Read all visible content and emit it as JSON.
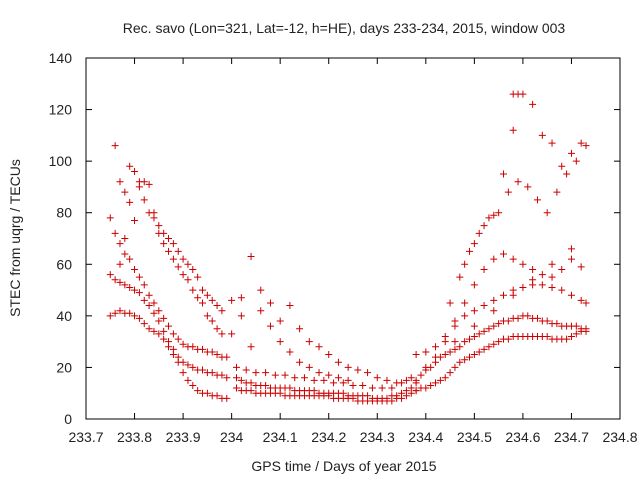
{
  "chart_data": {
    "type": "scatter",
    "title": "Rec. savo (Lon=321, Lat=-12, h=HE), days 233-234, 2015, window 003",
    "xlabel": "GPS time / Days of year 2015",
    "ylabel": "STEC from uqrg / TECUs",
    "xlim": [
      233.7,
      234.8
    ],
    "ylim": [
      0,
      140
    ],
    "xticks": [
      233.7,
      233.8,
      233.9,
      234,
      234.1,
      234.2,
      234.3,
      234.4,
      234.5,
      234.6,
      234.7,
      234.8
    ],
    "xtick_labels": [
      "233.7",
      "233.8",
      "233.9",
      "234",
      "234.1",
      "234.2",
      "234.3",
      "234.4",
      "234.5",
      "234.6",
      "234.7",
      "234.8"
    ],
    "yticks": [
      0,
      20,
      40,
      60,
      80,
      100,
      120,
      140
    ],
    "ytick_labels": [
      "0",
      "20",
      "40",
      "60",
      "80",
      "100",
      "120",
      "140"
    ],
    "grid": false,
    "legend": "none",
    "marker": "plus",
    "color": "#cc0000",
    "series": [
      {
        "x": [
          233.75,
          233.76,
          233.77,
          233.78,
          233.79,
          233.8,
          233.81,
          233.82,
          233.83,
          233.84,
          233.85,
          233.86,
          233.87,
          233.88,
          233.89,
          233.9,
          233.91,
          233.92,
          233.93,
          233.94,
          233.95,
          233.96,
          233.97,
          233.98,
          233.99
        ],
        "y": [
          78,
          72,
          68,
          64,
          62,
          58,
          55,
          52,
          48,
          45,
          42,
          39,
          36,
          33,
          31,
          29,
          28,
          28,
          27,
          27,
          26,
          26,
          25,
          24,
          24
        ]
      },
      {
        "x": [
          233.75,
          233.76,
          233.77,
          233.78,
          233.79,
          233.8,
          233.81,
          233.82,
          233.83,
          233.84,
          233.85,
          233.86,
          233.87,
          233.88,
          233.89,
          233.9,
          233.91,
          233.92,
          233.93,
          233.94,
          233.95,
          233.96,
          233.97,
          233.98,
          233.99
        ],
        "y": [
          56,
          54,
          53,
          52,
          51,
          50,
          49,
          46,
          44,
          41,
          38,
          34,
          30,
          27,
          24,
          22,
          21,
          20,
          19,
          19,
          18,
          18,
          17,
          17,
          16
        ]
      },
      {
        "x": [
          233.75,
          233.76,
          233.77,
          233.78,
          233.79,
          233.8,
          233.81,
          233.82,
          233.83,
          233.84,
          233.85,
          233.86,
          233.87,
          233.88,
          233.89,
          233.9,
          233.91,
          233.92,
          233.93,
          233.94,
          233.95,
          233.96,
          233.97,
          233.98,
          233.99
        ],
        "y": [
          40,
          41,
          42,
          41,
          41,
          40,
          39,
          37,
          35,
          34,
          33,
          31,
          28,
          25,
          22,
          18,
          15,
          13,
          11,
          10,
          10,
          9,
          9,
          8,
          8
        ]
      },
      {
        "x": [
          233.76,
          233.77,
          233.78,
          233.79,
          233.8,
          233.81,
          233.82,
          233.83,
          233.84,
          233.85,
          233.86,
          233.87,
          233.88,
          233.89,
          233.9,
          233.91,
          233.92,
          233.93,
          233.94,
          233.95,
          233.96,
          233.97,
          233.98
        ],
        "y": [
          106,
          92,
          88,
          98,
          96,
          92,
          85,
          80,
          78,
          75,
          72,
          70,
          68,
          65,
          62,
          60,
          58,
          55,
          50,
          48,
          46,
          44,
          42
        ]
      },
      {
        "x": [
          233.77,
          233.78,
          233.79,
          233.8,
          233.81,
          233.82,
          233.83,
          233.84,
          233.85,
          233.86,
          233.87,
          233.88,
          233.89,
          233.9,
          233.91,
          233.92,
          233.93,
          233.94,
          233.95,
          233.96,
          233.97,
          233.98
        ],
        "y": [
          60,
          70,
          84,
          77,
          90,
          92,
          91,
          80,
          72,
          68,
          65,
          62,
          59,
          56,
          54,
          50,
          47,
          45,
          40,
          38,
          35,
          33
        ]
      },
      {
        "x": [
          234.01,
          234.02,
          234.03,
          234.04,
          234.05,
          234.06,
          234.07,
          234.08,
          234.09,
          234.1,
          234.11,
          234.12,
          234.13,
          234.14,
          234.15,
          234.16,
          234.17,
          234.18,
          234.19,
          234.2,
          234.21,
          234.22,
          234.23,
          234.24,
          234.25,
          234.26,
          234.27,
          234.28,
          234.29,
          234.3,
          234.31,
          234.32,
          234.33,
          234.34,
          234.35,
          234.36,
          234.37,
          234.38
        ],
        "y": [
          12,
          11,
          11,
          11,
          10,
          10,
          10,
          10,
          10,
          10,
          9,
          9,
          9,
          9,
          9,
          9,
          9,
          9,
          9,
          9,
          8,
          8,
          8,
          8,
          8,
          7,
          7,
          7,
          7,
          7,
          7,
          7,
          7,
          8,
          8,
          9,
          10,
          11
        ]
      },
      {
        "x": [
          234.01,
          234.02,
          234.03,
          234.04,
          234.05,
          234.06,
          234.07,
          234.08,
          234.09,
          234.1,
          234.11,
          234.12,
          234.13,
          234.14,
          234.15,
          234.16,
          234.17,
          234.18,
          234.19,
          234.2,
          234.21,
          234.22,
          234.23,
          234.24,
          234.25,
          234.26,
          234.27,
          234.28,
          234.29,
          234.3,
          234.31,
          234.32,
          234.33,
          234.34,
          234.35,
          234.36,
          234.37,
          234.38
        ],
        "y": [
          16,
          15,
          14,
          14,
          13,
          13,
          13,
          12,
          12,
          12,
          12,
          12,
          11,
          11,
          11,
          11,
          11,
          10,
          10,
          10,
          10,
          10,
          10,
          9,
          9,
          9,
          9,
          9,
          8,
          8,
          8,
          8,
          9,
          9,
          10,
          11,
          12,
          14
        ]
      },
      {
        "x": [
          234.01,
          234.03,
          234.05,
          234.07,
          234.09,
          234.11,
          234.13,
          234.15,
          234.17,
          234.19,
          234.21,
          234.23,
          234.25,
          234.27,
          234.29,
          234.31,
          234.33,
          234.35,
          234.37
        ],
        "y": [
          20,
          19,
          18,
          18,
          17,
          17,
          16,
          16,
          15,
          15,
          14,
          14,
          13,
          13,
          12,
          12,
          12,
          14,
          16
        ]
      },
      {
        "x": [
          234.0,
          234.02,
          234.04,
          234.06,
          234.08,
          234.1,
          234.12,
          234.14,
          234.16,
          234.18,
          234.2,
          234.22,
          234.24,
          234.26,
          234.28,
          234.3,
          234.32,
          234.34,
          234.36
        ],
        "y": [
          46,
          40,
          63,
          50,
          45,
          38,
          44,
          35,
          30,
          28,
          25,
          22,
          20,
          19,
          18,
          16,
          15,
          14,
          15
        ]
      },
      {
        "x": [
          234.0,
          234.02,
          234.04,
          234.06,
          234.08,
          234.1,
          234.12,
          234.14,
          234.16,
          234.18,
          234.2,
          234.22,
          234.24
        ],
        "y": [
          33,
          47,
          28,
          42,
          36,
          30,
          26,
          22,
          20,
          18,
          17,
          16,
          15
        ]
      },
      {
        "x": [
          234.38,
          234.39,
          234.4,
          234.41,
          234.42,
          234.43,
          234.44,
          234.45,
          234.46,
          234.47,
          234.48,
          234.49,
          234.5,
          234.51,
          234.52,
          234.53,
          234.54,
          234.55,
          234.56,
          234.57,
          234.58,
          234.59,
          234.6,
          234.61,
          234.62,
          234.63,
          234.64,
          234.65,
          234.66,
          234.67,
          234.68,
          234.69,
          234.7,
          234.71,
          234.72,
          234.73
        ],
        "y": [
          11,
          12,
          12,
          13,
          14,
          15,
          16,
          18,
          20,
          22,
          23,
          24,
          25,
          26,
          27,
          28,
          29,
          30,
          31,
          31,
          32,
          32,
          32,
          32,
          32,
          32,
          32,
          32,
          31,
          31,
          31,
          31,
          32,
          33,
          34,
          35
        ]
      },
      {
        "x": [
          234.38,
          234.39,
          234.4,
          234.41,
          234.42,
          234.43,
          234.44,
          234.45,
          234.46,
          234.47,
          234.48,
          234.49,
          234.5,
          234.51,
          234.52,
          234.53,
          234.54,
          234.55,
          234.56,
          234.57,
          234.58,
          234.59,
          234.6,
          234.61,
          234.62,
          234.63,
          234.64,
          234.65,
          234.66,
          234.67,
          234.68,
          234.69,
          234.7,
          234.71,
          234.72,
          234.73
        ],
        "y": [
          15,
          17,
          19,
          20,
          22,
          24,
          25,
          26,
          27,
          28,
          30,
          31,
          32,
          33,
          34,
          35,
          36,
          37,
          38,
          38,
          39,
          39,
          40,
          40,
          39,
          39,
          38,
          38,
          37,
          37,
          36,
          36,
          36,
          36,
          35,
          34
        ]
      },
      {
        "x": [
          234.38,
          234.4,
          234.42,
          234.44,
          234.46,
          234.48,
          234.5,
          234.52,
          234.54,
          234.56,
          234.58,
          234.6,
          234.62,
          234.64,
          234.66,
          234.68,
          234.7,
          234.72,
          234.73
        ],
        "y": [
          25,
          26,
          28,
          32,
          36,
          40,
          42,
          44,
          46,
          48,
          50,
          51,
          52,
          52,
          51,
          50,
          48,
          46,
          45
        ]
      },
      {
        "x": [
          234.4,
          234.42,
          234.44,
          234.46,
          234.48,
          234.5,
          234.52,
          234.54,
          234.56,
          234.58,
          234.6,
          234.62,
          234.64,
          234.66,
          234.68,
          234.7,
          234.72
        ],
        "y": [
          20,
          24,
          30,
          38,
          45,
          52,
          58,
          62,
          64,
          62,
          60,
          58,
          56,
          55,
          58,
          62,
          59
        ]
      },
      {
        "x": [
          234.45,
          234.47,
          234.49,
          234.51,
          234.53,
          234.55,
          234.57,
          234.59,
          234.61,
          234.63,
          234.65,
          234.67,
          234.69,
          234.71,
          234.73
        ],
        "y": [
          45,
          55,
          65,
          72,
          78,
          80,
          88,
          92,
          90,
          85,
          80,
          88,
          95,
          100,
          106
        ]
      },
      {
        "x": [
          234.48,
          234.5,
          234.52,
          234.54,
          234.56,
          234.58,
          234.6,
          234.62,
          234.64,
          234.66,
          234.68,
          234.7,
          234.72
        ],
        "y": [
          60,
          68,
          75,
          79,
          95,
          112,
          126,
          122,
          110,
          107,
          98,
          103,
          107
        ]
      },
      {
        "x": [
          234.46,
          234.5,
          234.54,
          234.58,
          234.62,
          234.66,
          234.7
        ],
        "y": [
          30,
          36,
          42,
          48,
          54,
          60,
          66
        ]
      },
      {
        "x": [
          234.58,
          234.59
        ],
        "y": [
          126,
          126
        ]
      }
    ]
  }
}
